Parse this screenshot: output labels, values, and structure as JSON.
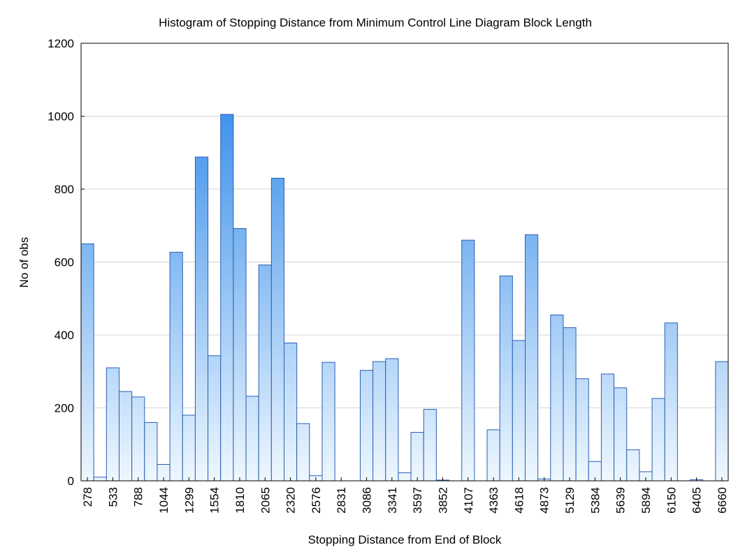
{
  "chart_data": {
    "type": "bar",
    "title": "Histogram of Stopping Distance from Minimum Control Line Diagram Block Length",
    "x_label": "Stopping Distance from End of Block",
    "y_label": "No of obs",
    "categories": [
      "278",
      null,
      "533",
      null,
      "788",
      null,
      "1044",
      null,
      "1299",
      null,
      "1554",
      null,
      "1810",
      null,
      "2065",
      null,
      "2320",
      null,
      "2576",
      null,
      "2831",
      null,
      "3086",
      null,
      "3341",
      null,
      "3597",
      null,
      "3852",
      null,
      "4107",
      null,
      "4363",
      null,
      "4618",
      null,
      "4873",
      null,
      "5129",
      null,
      "5384",
      null,
      "5639",
      null,
      "5894",
      null,
      "6150",
      null,
      "6405",
      null,
      "6660"
    ],
    "values": [
      650,
      10,
      310,
      245,
      230,
      160,
      45,
      627,
      180,
      888,
      343,
      1005,
      692,
      232,
      592,
      830,
      378,
      157,
      14,
      325,
      0,
      0,
      303,
      327,
      335,
      22,
      133,
      196,
      2,
      0,
      660,
      0,
      140,
      562,
      385,
      675,
      5,
      455,
      420,
      280,
      53,
      293,
      255,
      85,
      25,
      226,
      433,
      0,
      3,
      0,
      327
    ],
    "color": "#1e7fe8",
    "ylim": [
      0,
      1200
    ],
    "yticks": [
      0,
      200,
      400,
      600,
      800,
      1000,
      1200
    ],
    "grid": true
  }
}
